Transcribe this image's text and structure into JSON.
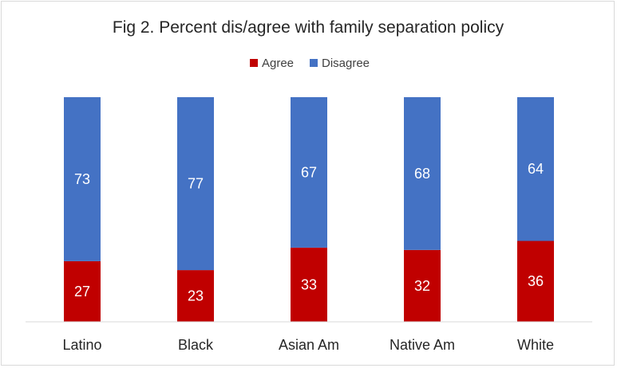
{
  "chart_data": {
    "type": "bar",
    "stacked": true,
    "title": "Fig 2. Percent dis/agree with family separation policy",
    "categories": [
      "Latino",
      "Black",
      "Asian Am",
      "Native Am",
      "White"
    ],
    "series": [
      {
        "name": "Agree",
        "values": [
          27,
          23,
          33,
          32,
          36
        ],
        "color": "#C00000"
      },
      {
        "name": "Disagree",
        "values": [
          73,
          77,
          67,
          68,
          64
        ],
        "color": "#4472C4"
      }
    ],
    "ylim": [
      0,
      100
    ],
    "legend_position": "top-center",
    "grid": false,
    "data_labels": true
  }
}
